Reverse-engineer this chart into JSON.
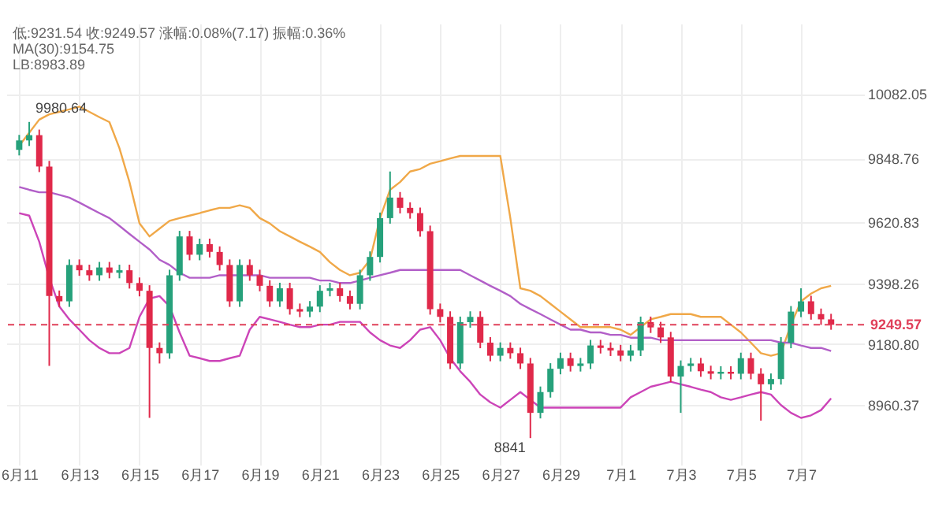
{
  "chart_data": {
    "type": "candlestick",
    "annotations": [
      "低:9231.54  收:9249.57  涨幅:0.08%(7.17)  振幅:0.36%",
      "MA(30):9154.75",
      "LB:8983.89",
      "9980.64",
      "8841"
    ],
    "categories": [
      "6月11",
      null,
      null,
      null,
      null,
      null,
      "6月13",
      null,
      null,
      null,
      null,
      null,
      "6月15",
      null,
      null,
      null,
      null,
      null,
      "6月17",
      null,
      null,
      null,
      null,
      null,
      "6月19",
      null,
      null,
      null,
      null,
      null,
      "6月21",
      null,
      null,
      null,
      null,
      null,
      "6月23",
      null,
      null,
      null,
      null,
      null,
      "6月25",
      null,
      null,
      null,
      null,
      null,
      "6月27",
      null,
      null,
      null,
      null,
      null,
      "6月29",
      null,
      null,
      null,
      null,
      null,
      "7月1",
      null,
      null,
      null,
      null,
      null,
      "7月3",
      null,
      null,
      null,
      null,
      null,
      "7月5",
      null,
      null,
      null,
      null,
      null,
      "7月7",
      null,
      null,
      null
    ],
    "ohlc": [
      [
        9880,
        9934,
        9860,
        9914
      ],
      [
        9914,
        9980.64,
        9894,
        9933
      ],
      [
        9933,
        9953,
        9800,
        9820
      ],
      [
        9820,
        9840,
        9101,
        9353
      ],
      [
        9353,
        9373,
        9314,
        9334
      ],
      [
        9334,
        9485,
        9314,
        9465
      ],
      [
        9465,
        9485,
        9426,
        9446
      ],
      [
        9446,
        9466,
        9408,
        9428
      ],
      [
        9428,
        9476,
        9408,
        9456
      ],
      [
        9456,
        9476,
        9417,
        9437
      ],
      [
        9437,
        9466,
        9417,
        9446
      ],
      [
        9446,
        9466,
        9380,
        9400
      ],
      [
        9400,
        9420,
        9352,
        9372
      ],
      [
        9372,
        9392,
        8914,
        9166
      ],
      [
        9166,
        9186,
        9110,
        9147
      ],
      [
        9147,
        9448,
        9127,
        9428
      ],
      [
        9428,
        9588,
        9408,
        9568
      ],
      [
        9568,
        9588,
        9482,
        9502
      ],
      [
        9502,
        9560,
        9482,
        9540
      ],
      [
        9540,
        9560,
        9492,
        9512
      ],
      [
        9512,
        9532,
        9445,
        9465
      ],
      [
        9465,
        9485,
        9314,
        9334
      ],
      [
        9334,
        9485,
        9314,
        9465
      ],
      [
        9465,
        9485,
        9408,
        9428
      ],
      [
        9428,
        9448,
        9370,
        9390
      ],
      [
        9390,
        9410,
        9314,
        9334
      ],
      [
        9334,
        9401,
        9314,
        9381
      ],
      [
        9381,
        9401,
        9286,
        9306
      ],
      [
        9306,
        9326,
        9277,
        9297
      ],
      [
        9297,
        9335,
        9277,
        9315
      ],
      [
        9315,
        9392,
        9295,
        9372
      ],
      [
        9372,
        9401,
        9352,
        9381
      ],
      [
        9381,
        9401,
        9333,
        9353
      ],
      [
        9353,
        9373,
        9305,
        9325
      ],
      [
        9325,
        9448,
        9305,
        9428
      ],
      [
        9428,
        9514,
        9408,
        9494
      ],
      [
        9494,
        9654,
        9474,
        9634
      ],
      [
        9634,
        9802,
        9614,
        9708
      ],
      [
        9708,
        9728,
        9651,
        9671
      ],
      [
        9671,
        9691,
        9632,
        9652
      ],
      [
        9652,
        9672,
        9567,
        9587
      ],
      [
        9587,
        9607,
        9286,
        9306
      ],
      [
        9306,
        9326,
        9258,
        9278
      ],
      [
        9278,
        9298,
        9090,
        9110
      ],
      [
        9110,
        9279,
        9090,
        9259
      ],
      [
        9259,
        9298,
        9239,
        9278
      ],
      [
        9278,
        9298,
        9165,
        9185
      ],
      [
        9185,
        9205,
        9118,
        9138
      ],
      [
        9138,
        9186,
        9118,
        9166
      ],
      [
        9166,
        9186,
        9127,
        9147
      ],
      [
        9147,
        9167,
        9090,
        9110
      ],
      [
        9110,
        9130,
        8841,
        8932
      ],
      [
        8932,
        9027,
        8912,
        9007
      ],
      [
        9007,
        9111,
        8987,
        9091
      ],
      [
        9091,
        9149,
        9071,
        9129
      ],
      [
        9129,
        9149,
        9081,
        9101
      ],
      [
        9101,
        9130,
        9081,
        9110
      ],
      [
        9110,
        9195,
        9090,
        9175
      ],
      [
        9175,
        9195,
        9146,
        9166
      ],
      [
        9166,
        9186,
        9137,
        9157
      ],
      [
        9157,
        9177,
        9118,
        9138
      ],
      [
        9138,
        9177,
        9118,
        9157
      ],
      [
        9157,
        9279,
        9137,
        9259
      ],
      [
        9259,
        9279,
        9220,
        9240
      ],
      [
        9240,
        9260,
        9184,
        9204
      ],
      [
        9204,
        9224,
        9043,
        9063
      ],
      [
        9063,
        9121,
        8932,
        9101
      ],
      [
        9101,
        9130,
        9081,
        9110
      ],
      [
        9110,
        9130,
        9062,
        9082
      ],
      [
        9082,
        9102,
        9053,
        9073
      ],
      [
        9073,
        9100,
        9053,
        9080
      ],
      [
        9080,
        9100,
        9053,
        9073
      ],
      [
        9073,
        9149,
        9053,
        9129
      ],
      [
        9129,
        9149,
        9053,
        9073
      ],
      [
        9073,
        9093,
        8904,
        9035
      ],
      [
        9035,
        9074,
        9015,
        9054
      ],
      [
        9054,
        9205,
        9034,
        9185
      ],
      [
        9185,
        9317,
        9165,
        9297
      ],
      [
        9297,
        9381,
        9277,
        9334
      ],
      [
        9334,
        9354,
        9268,
        9288
      ],
      [
        9288,
        9308,
        9249,
        9269
      ],
      [
        9269,
        9289,
        9231.54,
        9249.57
      ]
    ],
    "colors": [
      "#26a17b",
      "#26a17b",
      "#e0294a",
      "#e0294a",
      "#e0294a",
      "#26a17b",
      "#e0294a",
      "#e0294a",
      "#26a17b",
      "#e0294a",
      "#26a17b",
      "#e0294a",
      "#e0294a",
      "#e0294a",
      "#e0294a",
      "#26a17b",
      "#26a17b",
      "#e0294a",
      "#26a17b",
      "#e0294a",
      "#e0294a",
      "#e0294a",
      "#26a17b",
      "#e0294a",
      "#e0294a",
      "#e0294a",
      "#26a17b",
      "#e0294a",
      "#e0294a",
      "#26a17b",
      "#26a17b",
      "#26a17b",
      "#e0294a",
      "#e0294a",
      "#26a17b",
      "#26a17b",
      "#26a17b",
      "#26a17b",
      "#e0294a",
      "#e0294a",
      "#e0294a",
      "#e0294a",
      "#e0294a",
      "#e0294a",
      "#26a17b",
      "#26a17b",
      "#e0294a",
      "#e0294a",
      "#26a17b",
      "#e0294a",
      "#e0294a",
      "#e0294a",
      "#26a17b",
      "#26a17b",
      "#26a17b",
      "#e0294a",
      "#26a17b",
      "#26a17b",
      "#e0294a",
      "#e0294a",
      "#e0294a",
      "#26a17b",
      "#26a17b",
      "#e0294a",
      "#e0294a",
      "#e0294a",
      "#26a17b",
      "#26a17b",
      "#e0294a",
      "#e0294a",
      "#26a17b",
      "#e0294a",
      "#26a17b",
      "#e0294a",
      "#e0294a",
      "#26a17b",
      "#26a17b",
      "#26a17b",
      "#26a17b",
      "#e0294a",
      "#e0294a",
      "#e0294a"
    ],
    "series": [
      {
        "type": "line",
        "color": "#f0a848",
        "values": [
          9895,
          9942,
          9989,
          10008,
          10017,
          10026,
          10036,
          10017,
          9998,
          9980,
          9886,
          9764,
          9615,
          9568,
          9596,
          9624,
          9634,
          9643,
          9652,
          9662,
          9671,
          9671,
          9680,
          9671,
          9634,
          9615,
          9587,
          9568,
          9549,
          9531,
          9512,
          9475,
          9447,
          9428,
          9437,
          9484,
          9634,
          9736,
          9764,
          9802,
          9811,
          9830,
          9839,
          9849,
          9858,
          9858,
          9858,
          9858,
          9858,
          9634,
          9381,
          9372,
          9353,
          9325,
          9297,
          9269,
          9241,
          9241,
          9241,
          9241,
          9232,
          9213,
          9241,
          9269,
          9278,
          9288,
          9288,
          9288,
          9278,
          9278,
          9278,
          9250,
          9222,
          9185,
          9147,
          9138,
          9147,
          9250,
          9334,
          9362,
          9381,
          9390
        ]
      },
      {
        "type": "line",
        "color": "#cc44b8",
        "values": [
          9652,
          9643,
          9549,
          9418,
          9316,
          9269,
          9232,
          9194,
          9166,
          9147,
          9147,
          9166,
          9278,
          9344,
          9353,
          9316,
          9222,
          9138,
          9129,
          9119,
          9119,
          9129,
          9138,
          9232,
          9278,
          9269,
          9260,
          9250,
          9241,
          9241,
          9250,
          9250,
          9260,
          9260,
          9260,
          9222,
          9194,
          9175,
          9166,
          9194,
          9232,
          9241,
          9194,
          9129,
          9082,
          9044,
          8998,
          8970,
          8951,
          8979,
          9007,
          8979,
          8951,
          8951,
          8951,
          8951,
          8951,
          8951,
          8951,
          8951,
          8951,
          8988,
          9007,
          9026,
          9035,
          9044,
          9035,
          9026,
          9016,
          9007,
          8988,
          8979,
          8988,
          8998,
          9007,
          8998,
          8960,
          8932,
          8914,
          8923,
          8942,
          8984
        ]
      },
      {
        "type": "line",
        "color": "#b25fc8",
        "values": [
          9746,
          9736,
          9727,
          9727,
          9718,
          9708,
          9690,
          9671,
          9652,
          9634,
          9606,
          9577,
          9549,
          9521,
          9484,
          9465,
          9437,
          9419,
          9419,
          9419,
          9428,
          9428,
          9428,
          9428,
          9428,
          9419,
          9419,
          9419,
          9419,
          9419,
          9409,
          9409,
          9400,
          9400,
          9409,
          9419,
          9428,
          9437,
          9447,
          9447,
          9447,
          9447,
          9447,
          9447,
          9447,
          9428,
          9409,
          9390,
          9372,
          9353,
          9325,
          9306,
          9288,
          9269,
          9250,
          9232,
          9232,
          9222,
          9222,
          9213,
          9213,
          9203,
          9203,
          9203,
          9194,
          9194,
          9194,
          9194,
          9194,
          9194,
          9194,
          9194,
          9194,
          9194,
          9194,
          9194,
          9185,
          9185,
          9175,
          9166,
          9166,
          9155
        ]
      }
    ],
    "ylim": [
      8745,
      10335
    ],
    "yticks": [
      8960.37,
      {
        "value": 9180.8,
        "label": "9180.80"
      },
      9398.26,
      9620.83,
      9848.76,
      10082.05
    ],
    "grid": true,
    "ref_lines": [
      {
        "axis": "y",
        "value": 9249.57,
        "label": "9249.57",
        "color": "#e0405a",
        "line_style": "dashed"
      }
    ]
  }
}
